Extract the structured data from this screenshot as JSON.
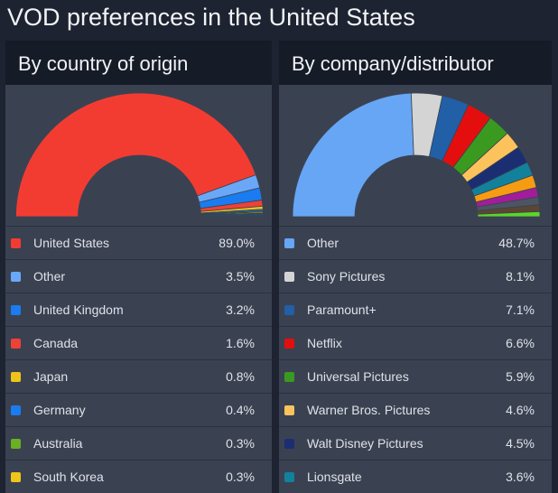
{
  "title": "VOD preferences in the United States",
  "chart_data": [
    {
      "type": "pie",
      "variant": "half-donut",
      "title": "By country of origin",
      "series": [
        {
          "name": "United States",
          "value": 89.0,
          "label": "89.0%",
          "color": "#f23c32"
        },
        {
          "name": "Other",
          "value": 3.5,
          "label": "3.5%",
          "color": "#6aa8f7"
        },
        {
          "name": "United Kingdom",
          "value": 3.2,
          "label": "3.2%",
          "color": "#1a7cf0"
        },
        {
          "name": "Canada",
          "value": 1.6,
          "label": "1.6%",
          "color": "#ef4136"
        },
        {
          "name": "Japan",
          "value": 0.8,
          "label": "0.8%",
          "color": "#f0c419"
        },
        {
          "name": "Germany",
          "value": 0.4,
          "label": "0.4%",
          "color": "#1a7cf0"
        },
        {
          "name": "Australia",
          "value": 0.3,
          "label": "0.3%",
          "color": "#6ab023"
        },
        {
          "name": "South Korea",
          "value": 0.3,
          "label": "0.3%",
          "color": "#f0c419"
        }
      ],
      "unlisted_slices": [
        {
          "value": 0.9,
          "color": "#2e4a5e"
        }
      ]
    },
    {
      "type": "pie",
      "variant": "half-donut",
      "title": "By company/distributor",
      "series": [
        {
          "name": "Other",
          "value": 48.7,
          "label": "48.7%",
          "color": "#66a6f5"
        },
        {
          "name": "Sony Pictures",
          "value": 8.1,
          "label": "8.1%",
          "color": "#d4d4d4"
        },
        {
          "name": "Paramount+",
          "value": 7.1,
          "label": "7.1%",
          "color": "#215fa6"
        },
        {
          "name": "Netflix",
          "value": 6.6,
          "label": "6.6%",
          "color": "#e50e0e"
        },
        {
          "name": "Universal Pictures",
          "value": 5.9,
          "label": "5.9%",
          "color": "#3a9a1f"
        },
        {
          "name": "Warner Bros. Pictures",
          "value": 4.6,
          "label": "4.6%",
          "color": "#fcc35c"
        },
        {
          "name": "Walt Disney Pictures",
          "value": 4.5,
          "label": "4.5%",
          "color": "#1c2e72"
        },
        {
          "name": "Lionsgate",
          "value": 3.6,
          "label": "3.6%",
          "color": "#12819c"
        }
      ],
      "unlisted_slices": [
        {
          "value": 3.3,
          "color": "#f59c12"
        },
        {
          "value": 2.5,
          "color": "#a11d9a"
        },
        {
          "value": 2.0,
          "color": "#4d5563"
        },
        {
          "value": 1.8,
          "color": "#5a4632"
        },
        {
          "value": 1.3,
          "color": "#5cd62a"
        }
      ]
    }
  ]
}
